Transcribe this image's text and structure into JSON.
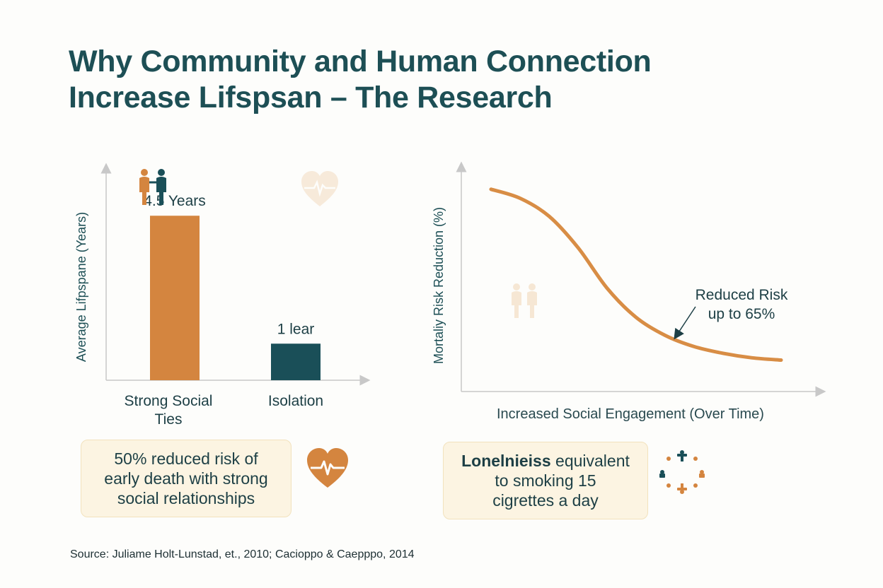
{
  "title": {
    "line1": "Why Community and Human Connection",
    "line2": "Increase Lifspsan – The Research"
  },
  "chart_data": [
    {
      "type": "bar",
      "categories": [
        "Strong Social Ties",
        "Isolation"
      ],
      "category_lines": [
        [
          "Strong Social",
          "Ties"
        ],
        [
          "Isolation"
        ]
      ],
      "values": [
        4.5,
        1
      ],
      "data_labels": [
        "4.5 Years",
        "1 lear"
      ],
      "ylabel": "Average Lifpspane (Years)",
      "ylim": [
        0,
        5.8
      ],
      "colors": [
        "#d4853f",
        "#1a4f58"
      ],
      "grid": false
    },
    {
      "type": "line",
      "x": [
        0,
        0.1,
        0.2,
        0.3,
        0.4,
        0.5,
        0.6,
        0.7,
        0.8,
        0.9,
        1.0
      ],
      "y": [
        90,
        86,
        78,
        64,
        46,
        33,
        25,
        20,
        17,
        15,
        14
      ],
      "xlabel": "Increased Social Engagement (Over Time)",
      "ylabel": "Mortaliy Risk Reduction (%)",
      "annotation": [
        "Reduced Risk",
        "up to 65%"
      ],
      "line_color": "#d88d45",
      "grid": false
    }
  ],
  "callouts": {
    "left": [
      "50% reduced risk of",
      "early death with strong",
      "social relationships"
    ],
    "right_bold": "Lonelnieiss",
    "right_rest": " equivalent",
    "right_lines": [
      "to smoking 15",
      "cigrettes a day"
    ]
  },
  "icons": {
    "people": "people-icon",
    "heart_faint": "heart-pulse-icon",
    "people_faint": "people-icon",
    "heart": "heart-pulse-icon",
    "community": "community-circle-icon"
  },
  "colors": {
    "accent_orange": "#d4853f",
    "accent_teal": "#1a4f58",
    "title": "#1d4f55",
    "callout_bg": "#fcf4e2"
  },
  "source": "Source: Juliame Holt-Lunstad, et., 2010; Cacioppo & Caepppo, 2014"
}
